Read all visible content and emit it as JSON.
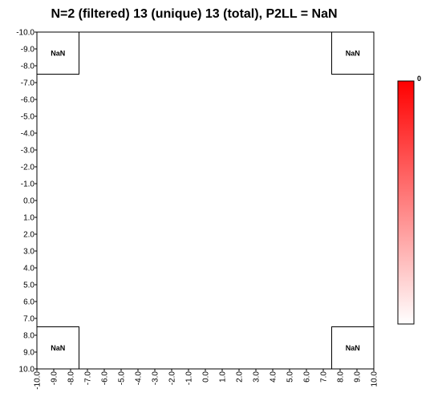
{
  "chart_data": {
    "type": "heatmap",
    "title": "N=2 (filtered) 13 (unique) 13 (total), P2LL = NaN",
    "x_ticks": [
      "-10.0",
      "-9.0",
      "-8.0",
      "-7.0",
      "-6.0",
      "-5.0",
      "-4.0",
      "-3.0",
      "-2.0",
      "-1.0",
      "0.0",
      "1.0",
      "2.0",
      "3.0",
      "4.0",
      "5.0",
      "6.0",
      "7.0",
      "8.0",
      "9.0",
      "10.0"
    ],
    "y_ticks": [
      "-10.0",
      "-9.0",
      "-8.0",
      "-7.0",
      "-6.0",
      "-5.0",
      "-4.0",
      "-3.0",
      "-2.0",
      "-1.0",
      "0.0",
      "1.0",
      "2.0",
      "3.0",
      "4.0",
      "5.0",
      "6.0",
      "7.0",
      "8.0",
      "9.0",
      "10.0"
    ],
    "xlim": [
      -10,
      10
    ],
    "ylim": [
      -10,
      10
    ],
    "y_inverted": true,
    "cells": [
      {
        "x": [
          -10,
          -7.5
        ],
        "y": [
          -10,
          -7.5
        ],
        "label": "NaN"
      },
      {
        "x": [
          7.5,
          10
        ],
        "y": [
          -10,
          -7.5
        ],
        "label": "NaN"
      },
      {
        "x": [
          -10,
          -7.5
        ],
        "y": [
          7.5,
          10
        ],
        "label": "NaN"
      },
      {
        "x": [
          7.5,
          10
        ],
        "y": [
          7.5,
          10
        ],
        "label": "NaN"
      }
    ],
    "colorbar": {
      "max_label": "0",
      "color_top": "#ff0000",
      "color_bottom": "#ffffff"
    },
    "grid": false
  }
}
